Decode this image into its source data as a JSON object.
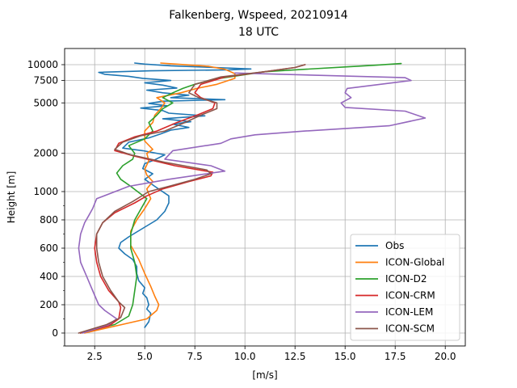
{
  "chart_data": {
    "type": "line",
    "title": "Falkenberg, Wspeed, 20210914",
    "subtitle": "18 UTC",
    "xlabel": "[m/s]",
    "ylabel": "Height [m]",
    "xlim": [
      1.0,
      21.0
    ],
    "x_ticks": [
      2.5,
      5.0,
      7.5,
      10.0,
      12.5,
      15.0,
      17.5,
      20.0
    ],
    "x_tick_labels": [
      "2.5",
      "5.0",
      "7.5",
      "10.0",
      "12.5",
      "15.0",
      "17.5",
      "20.0"
    ],
    "y_scale": "piecewise: linear below 1000 m, logarithmic above 1000 m",
    "y_ticks": [
      0,
      200,
      400,
      600,
      800,
      1000,
      2000,
      5000,
      7500,
      10000
    ],
    "y_tick_labels": [
      "0",
      "200",
      "400",
      "600",
      "800",
      "1000",
      "2000",
      "5000",
      "7500",
      "10000"
    ],
    "grid": true,
    "legend_position": "lower-right",
    "series": [
      {
        "name": "Obs",
        "color": "#1f77b4",
        "points": [
          [
            5.0,
            40
          ],
          [
            5.2,
            80
          ],
          [
            5.3,
            140
          ],
          [
            5.1,
            170
          ],
          [
            5.2,
            200
          ],
          [
            5.1,
            250
          ],
          [
            4.9,
            280
          ],
          [
            5.0,
            320
          ],
          [
            4.7,
            370
          ],
          [
            4.6,
            420
          ],
          [
            4.6,
            470
          ],
          [
            4.4,
            520
          ],
          [
            4.0,
            560
          ],
          [
            3.7,
            600
          ],
          [
            3.8,
            640
          ],
          [
            4.2,
            680
          ],
          [
            4.9,
            740
          ],
          [
            5.6,
            800
          ],
          [
            6.0,
            860
          ],
          [
            6.2,
            920
          ],
          [
            6.2,
            970
          ],
          [
            5.5,
            1100
          ],
          [
            5.0,
            1250
          ],
          [
            5.4,
            1380
          ],
          [
            4.9,
            1520
          ],
          [
            5.0,
            1660
          ],
          [
            5.5,
            1780
          ],
          [
            6.0,
            1950
          ],
          [
            4.9,
            2100
          ],
          [
            3.9,
            2200
          ],
          [
            4.2,
            2450
          ],
          [
            5.2,
            2650
          ],
          [
            5.8,
            2850
          ],
          [
            6.3,
            3050
          ],
          [
            7.2,
            3200
          ],
          [
            6.4,
            3400
          ],
          [
            7.3,
            3550
          ],
          [
            5.9,
            3750
          ],
          [
            8.0,
            3950
          ],
          [
            6.2,
            4150
          ],
          [
            5.9,
            4350
          ],
          [
            4.8,
            4550
          ],
          [
            6.1,
            4750
          ],
          [
            5.2,
            4950
          ],
          [
            5.9,
            5150
          ],
          [
            9.0,
            5300
          ],
          [
            6.3,
            5500
          ],
          [
            7.2,
            5750
          ],
          [
            5.9,
            6000
          ],
          [
            5.1,
            6300
          ],
          [
            6.6,
            6550
          ],
          [
            5.9,
            6900
          ],
          [
            5.0,
            7200
          ],
          [
            6.3,
            7500
          ],
          [
            4.9,
            7800
          ],
          [
            4.2,
            8100
          ],
          [
            3.0,
            8400
          ],
          [
            2.7,
            8700
          ],
          [
            5.3,
            8950
          ],
          [
            9.2,
            9100
          ],
          [
            10.3,
            9250
          ],
          [
            8.5,
            9500
          ],
          [
            6.3,
            9800
          ],
          [
            5.0,
            10100
          ],
          [
            4.5,
            10300
          ]
        ]
      },
      {
        "name": "ICON-Global",
        "color": "#ff7f0e",
        "points": [
          [
            2.0,
            0
          ],
          [
            5.1,
            100
          ],
          [
            5.6,
            160
          ],
          [
            5.7,
            200
          ],
          [
            5.5,
            260
          ],
          [
            5.3,
            330
          ],
          [
            5.0,
            420
          ],
          [
            4.7,
            520
          ],
          [
            4.3,
            620
          ],
          [
            4.3,
            720
          ],
          [
            4.6,
            800
          ],
          [
            5.0,
            880
          ],
          [
            5.3,
            950
          ],
          [
            5.1,
            1050
          ],
          [
            5.4,
            1200
          ],
          [
            5.1,
            1350
          ],
          [
            5.0,
            1500
          ],
          [
            5.2,
            1750
          ],
          [
            5.1,
            2000
          ],
          [
            5.4,
            2150
          ],
          [
            5.0,
            2500
          ],
          [
            5.0,
            3000
          ],
          [
            5.4,
            3500
          ],
          [
            5.5,
            4000
          ],
          [
            5.8,
            4500
          ],
          [
            6.0,
            5000
          ],
          [
            5.6,
            5500
          ],
          [
            6.8,
            6000
          ],
          [
            7.6,
            6500
          ],
          [
            8.6,
            7000
          ],
          [
            9.5,
            7800
          ],
          [
            9.5,
            8500
          ],
          [
            9.0,
            9200
          ],
          [
            8.2,
            9700
          ],
          [
            6.8,
            10050
          ],
          [
            5.8,
            10300
          ]
        ]
      },
      {
        "name": "ICON-D2",
        "color": "#2ca02c",
        "points": [
          [
            1.8,
            0
          ],
          [
            3.5,
            60
          ],
          [
            4.2,
            120
          ],
          [
            4.4,
            200
          ],
          [
            4.5,
            300
          ],
          [
            4.6,
            400
          ],
          [
            4.5,
            500
          ],
          [
            4.3,
            600
          ],
          [
            4.3,
            700
          ],
          [
            4.5,
            800
          ],
          [
            4.9,
            900
          ],
          [
            5.1,
            950
          ],
          [
            4.3,
            1100
          ],
          [
            3.8,
            1250
          ],
          [
            3.6,
            1400
          ],
          [
            3.9,
            1600
          ],
          [
            4.4,
            1800
          ],
          [
            4.5,
            2000
          ],
          [
            4.2,
            2300
          ],
          [
            5.0,
            2600
          ],
          [
            5.4,
            3000
          ],
          [
            5.2,
            3500
          ],
          [
            5.6,
            4000
          ],
          [
            5.9,
            4500
          ],
          [
            6.4,
            5000
          ],
          [
            5.9,
            5500
          ],
          [
            6.4,
            6000
          ],
          [
            6.9,
            6500
          ],
          [
            7.5,
            7000
          ],
          [
            8.5,
            7700
          ],
          [
            11.0,
            8800
          ],
          [
            13.0,
            9200
          ],
          [
            15.0,
            9600
          ],
          [
            16.5,
            9900
          ],
          [
            17.8,
            10200
          ]
        ]
      },
      {
        "name": "ICON-CRM",
        "color": "#d62728",
        "points": [
          [
            1.8,
            0
          ],
          [
            3.2,
            50
          ],
          [
            3.7,
            100
          ],
          [
            3.8,
            180
          ],
          [
            3.7,
            220
          ],
          [
            3.2,
            300
          ],
          [
            2.8,
            400
          ],
          [
            2.6,
            500
          ],
          [
            2.5,
            600
          ],
          [
            2.6,
            700
          ],
          [
            2.9,
            780
          ],
          [
            3.5,
            850
          ],
          [
            4.5,
            920
          ],
          [
            5.1,
            970
          ],
          [
            5.9,
            1050
          ],
          [
            7.2,
            1200
          ],
          [
            8.3,
            1330
          ],
          [
            8.4,
            1420
          ],
          [
            6.5,
            1600
          ],
          [
            4.5,
            1900
          ],
          [
            3.5,
            2100
          ],
          [
            3.7,
            2400
          ],
          [
            4.5,
            2700
          ],
          [
            5.6,
            3000
          ],
          [
            6.6,
            3500
          ],
          [
            7.6,
            4000
          ],
          [
            8.4,
            4500
          ],
          [
            8.5,
            5000
          ],
          [
            7.8,
            5500
          ],
          [
            7.5,
            6000
          ],
          [
            7.8,
            7000
          ],
          [
            9.0,
            8000
          ],
          [
            11.0,
            8800
          ],
          [
            12.5,
            9500
          ],
          [
            13.0,
            10000
          ]
        ]
      },
      {
        "name": "ICON-LEM",
        "color": "#9467bd",
        "points": [
          [
            1.9,
            0
          ],
          [
            3.2,
            60
          ],
          [
            3.6,
            100
          ],
          [
            3.0,
            160
          ],
          [
            2.7,
            200
          ],
          [
            2.4,
            300
          ],
          [
            2.1,
            400
          ],
          [
            1.8,
            500
          ],
          [
            1.7,
            600
          ],
          [
            1.8,
            700
          ],
          [
            2.0,
            780
          ],
          [
            2.2,
            830
          ],
          [
            2.4,
            880
          ],
          [
            2.6,
            950
          ],
          [
            4.2,
            1100
          ],
          [
            6.2,
            1250
          ],
          [
            9.0,
            1450
          ],
          [
            8.3,
            1600
          ],
          [
            6.0,
            1800
          ],
          [
            6.4,
            2100
          ],
          [
            8.8,
            2400
          ],
          [
            9.3,
            2600
          ],
          [
            10.5,
            2800
          ],
          [
            13.0,
            3000
          ],
          [
            17.2,
            3300
          ],
          [
            19.0,
            3800
          ],
          [
            18.0,
            4300
          ],
          [
            15.0,
            4600
          ],
          [
            14.8,
            5000
          ],
          [
            15.3,
            5500
          ],
          [
            15.0,
            6000
          ],
          [
            15.1,
            6500
          ],
          [
            18.3,
            7500
          ],
          [
            18.0,
            7900
          ],
          [
            13.0,
            8300
          ],
          [
            9.5,
            8600
          ]
        ]
      },
      {
        "name": "ICON-SCM",
        "color": "#8c564b",
        "points": [
          [
            1.7,
            0
          ],
          [
            3.1,
            60
          ],
          [
            3.8,
            110
          ],
          [
            4.0,
            180
          ],
          [
            3.7,
            220
          ],
          [
            3.3,
            300
          ],
          [
            2.9,
            400
          ],
          [
            2.7,
            500
          ],
          [
            2.6,
            600
          ],
          [
            2.6,
            700
          ],
          [
            2.9,
            780
          ],
          [
            3.5,
            860
          ],
          [
            4.4,
            930
          ],
          [
            5.2,
            1000
          ],
          [
            6.2,
            1100
          ],
          [
            7.5,
            1250
          ],
          [
            8.3,
            1380
          ],
          [
            8.1,
            1480
          ],
          [
            6.0,
            1700
          ],
          [
            4.3,
            1950
          ],
          [
            3.5,
            2150
          ],
          [
            3.9,
            2450
          ],
          [
            4.8,
            2750
          ],
          [
            6.0,
            3000
          ],
          [
            7.0,
            3500
          ],
          [
            7.8,
            4000
          ],
          [
            8.6,
            4500
          ],
          [
            8.6,
            5000
          ],
          [
            7.7,
            5500
          ],
          [
            7.2,
            6000
          ],
          [
            7.5,
            7000
          ],
          [
            8.8,
            8000
          ],
          [
            11.0,
            8800
          ],
          [
            12.5,
            9500
          ],
          [
            13.0,
            10000
          ]
        ]
      }
    ]
  }
}
